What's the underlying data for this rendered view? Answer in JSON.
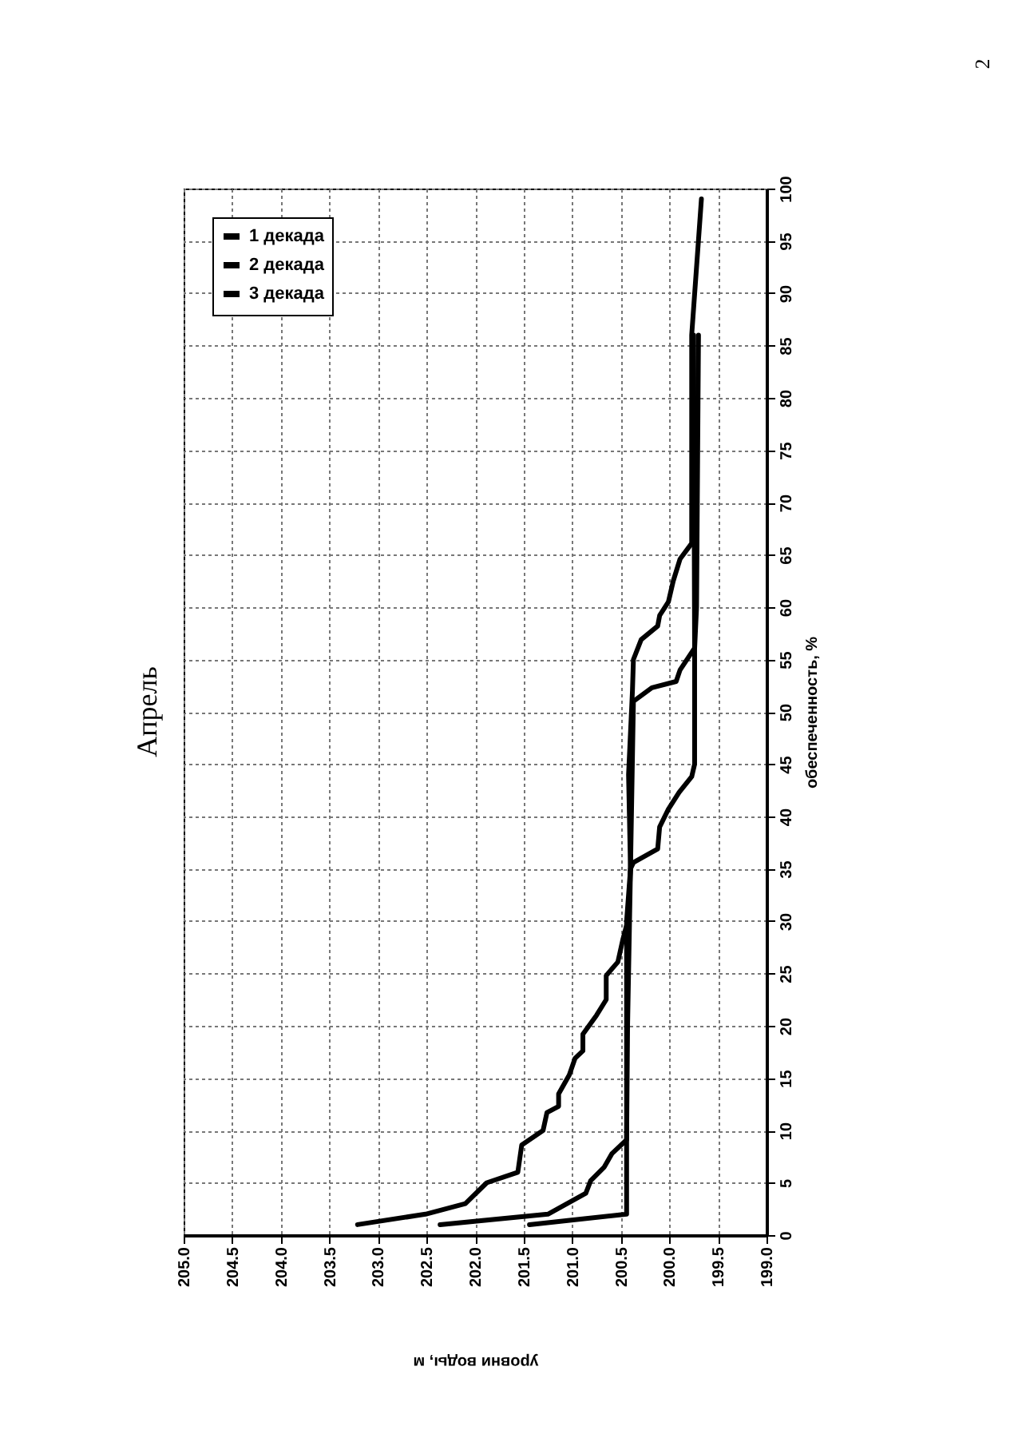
{
  "chart_data": {
    "type": "line",
    "title": "Апрель",
    "xlabel": "уровни воды, м",
    "ylabel": "обеспеченность, %",
    "annotations": [
      "2"
    ],
    "xlim": [
      205,
      199
    ],
    "xticks": [
      {
        "value": 205,
        "label": "205.0"
      },
      204.5,
      {
        "value": 204,
        "label": "204.0"
      },
      203.5,
      {
        "value": 203,
        "label": "203.0"
      },
      202.5,
      {
        "value": 202,
        "label": "202.0"
      },
      201.5,
      {
        "value": 201,
        "label": "201.0"
      },
      200.5,
      {
        "value": 200,
        "label": "200.0"
      },
      199.5,
      {
        "value": 199,
        "label": "199.0"
      }
    ],
    "ylim": [
      0,
      100
    ],
    "yticks": [
      0,
      5,
      10,
      15,
      20,
      25,
      30,
      35,
      40,
      45,
      50,
      55,
      60,
      65,
      70,
      75,
      80,
      85,
      90,
      95,
      100
    ],
    "grid": true,
    "legend": "top left",
    "marker": "none",
    "line_style": "solid",
    "series": [
      {
        "name": "1 декада",
        "color": "#000000",
        "x": [
          203.21,
          202.51,
          202.1,
          201.88,
          201.56,
          201.52,
          201.3,
          201.26,
          201.14,
          201.14,
          201.03,
          200.97,
          200.89,
          200.89,
          200.75,
          200.65,
          200.65,
          200.53,
          200.48,
          200.42,
          200.4,
          200.42,
          200.38,
          200.37,
          200.29,
          200.12,
          200.1,
          200.01,
          199.96,
          199.89,
          199.77,
          199.77,
          199.67
        ],
        "values": [
          1,
          2,
          3,
          5,
          6,
          8.6,
          10,
          11.7,
          12.3,
          13.5,
          15.3,
          16.9,
          17.6,
          19.2,
          21,
          22.5,
          24.8,
          26.1,
          28.2,
          30.3,
          35,
          44,
          52,
          55,
          56.9,
          58.2,
          59.2,
          60.5,
          62.5,
          64.6,
          66.1,
          86,
          99
        ]
      },
      {
        "name": "2 декада",
        "color": "#000000",
        "x": [
          202.36,
          201.25,
          200.86,
          200.81,
          200.67,
          200.59,
          200.44,
          200.43,
          200.4,
          200.37,
          200.12,
          200.1,
          200.01,
          199.9,
          199.77,
          199.74,
          199.74,
          199.72,
          199.7
        ],
        "values": [
          1,
          2,
          4,
          5.2,
          6.5,
          7.8,
          9.1,
          20,
          35,
          35.6,
          36.9,
          39,
          40.7,
          42.3,
          43.8,
          45,
          56,
          60,
          86
        ]
      },
      {
        "name": "3 декада",
        "color": "#000000",
        "x": [
          201.44,
          200.44,
          200.44,
          200.4,
          200.37,
          200.18,
          199.93,
          199.89,
          199.74,
          199.75
        ],
        "values": [
          1,
          2,
          30,
          35,
          51,
          52.3,
          52.9,
          54,
          56.1,
          86
        ]
      }
    ]
  }
}
